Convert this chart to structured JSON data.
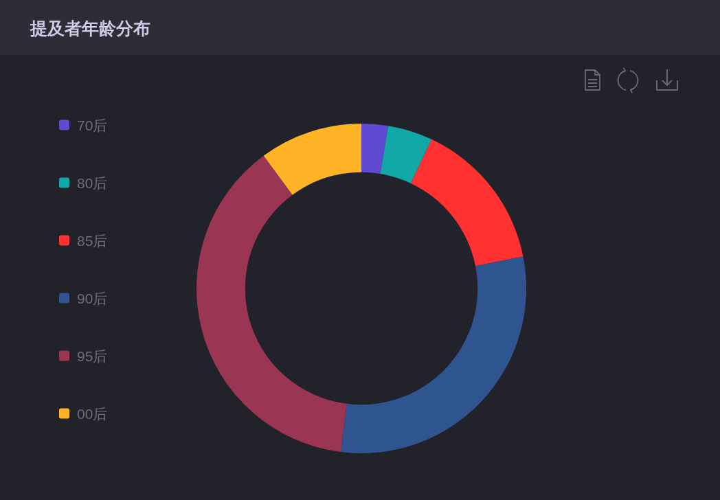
{
  "chart_data": {
    "type": "donut",
    "title": "提及者年龄分布",
    "categories": [
      "70后",
      "80后",
      "85后",
      "90后",
      "95后",
      "00后"
    ],
    "values": [
      2.6,
      4.4,
      14.9,
      30.1,
      37.9,
      10.1
    ],
    "colors": [
      "#5e4bd2",
      "#12a8a8",
      "#ff3131",
      "#2e5590",
      "#9a3553",
      "#ffb428"
    ],
    "legend": "left"
  }
}
